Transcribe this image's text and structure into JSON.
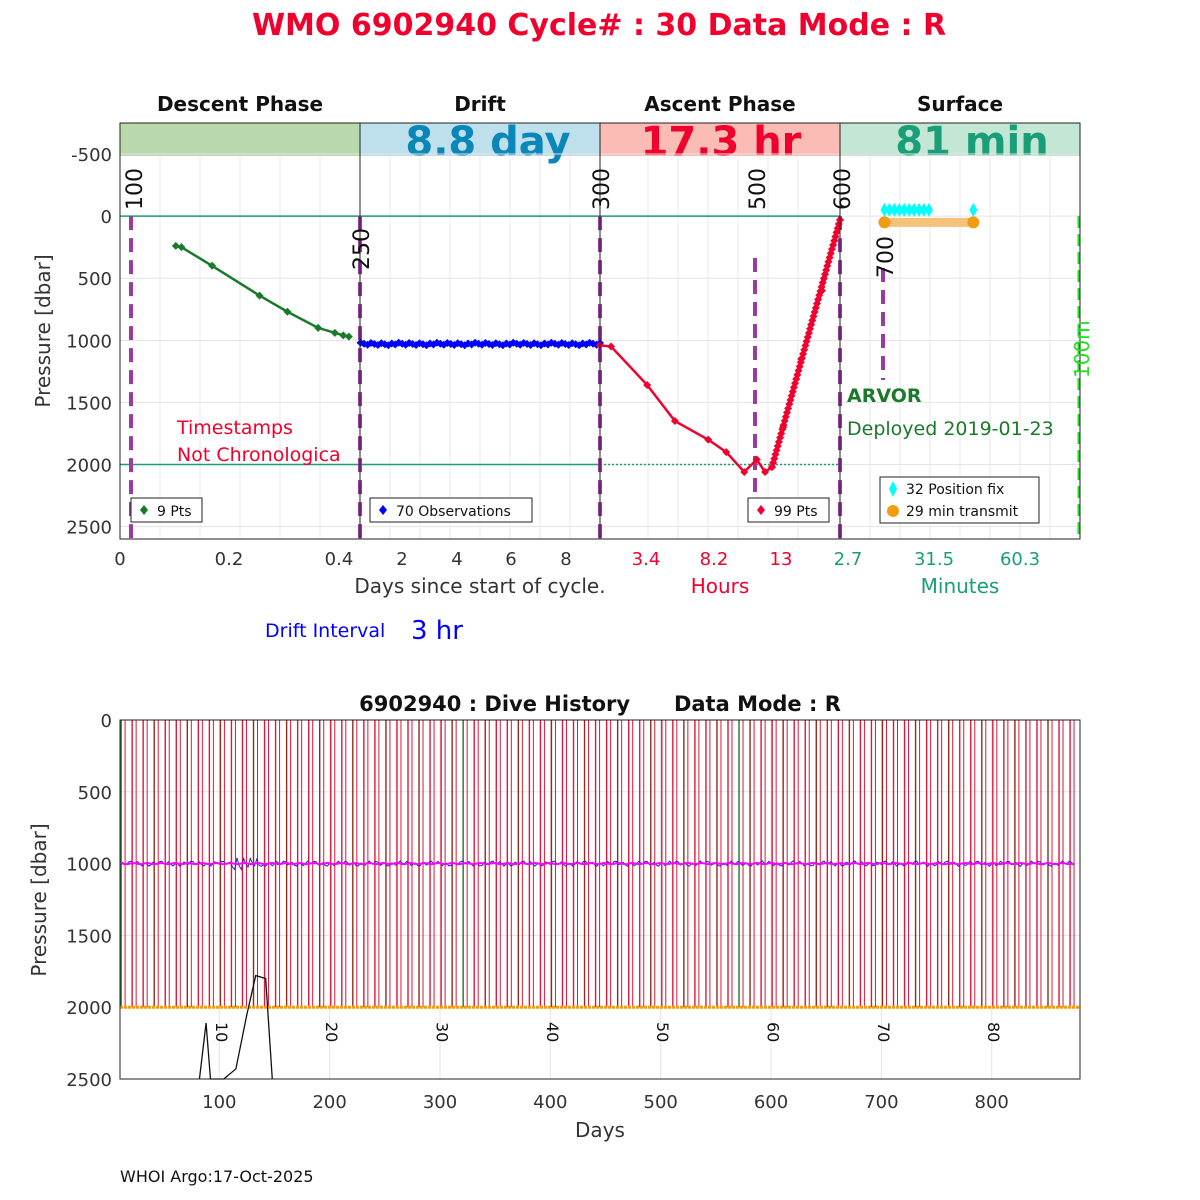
{
  "title": "WMO 6902940   Cycle# : 30   Data Mode : R",
  "colors": {
    "title": "#f0002c",
    "descent": "#1a7a2a",
    "drift": "#0000ff",
    "ascent": "#f0002c",
    "surface_fix": "#00ffff",
    "surface_tx": "#f39c12",
    "marker": "#9b3aa3",
    "teal": "#1a9e78",
    "green_dash": "#22dd22",
    "band_descent": "#b9d9ad",
    "band_drift": "#bde0ec",
    "band_ascent": "#fbbcb5",
    "band_surface": "#c4e6d4",
    "history_red": "#d81b3c",
    "history_green": "#1a7a2a",
    "history_brown": "#8b2e1a",
    "history_magenta": "#ff00ff",
    "history_orange": "#f39c12"
  },
  "top_panel": {
    "phases": [
      {
        "name": "Descent Phase",
        "duration": ""
      },
      {
        "name": "Drift",
        "duration": "8.8 day"
      },
      {
        "name": "Ascent Phase",
        "duration": "17.3 hr"
      },
      {
        "name": "Surface",
        "duration": "81 min"
      }
    ],
    "ylabel": "Pressure [dbar]",
    "yticks": [
      "-500",
      "0",
      "500",
      "1000",
      "1500",
      "2000",
      "2500"
    ],
    "descent_xticks": [
      "0",
      "0.2",
      "0.4"
    ],
    "drift_xticks": [
      "2",
      "4",
      "6",
      "8"
    ],
    "ascent_xticks": [
      "3.4",
      "8.2",
      "13"
    ],
    "surface_xticks": [
      "2.7",
      "31.5",
      "60.3"
    ],
    "xlabel_days": "Days since start of cycle.",
    "xlabel_hours": "Hours",
    "xlabel_minutes": "Minutes",
    "markers": [
      "100",
      "250",
      "300",
      "500",
      "600",
      "700",
      "100m"
    ],
    "legends": {
      "descent": "9 Pts",
      "drift": "70 Observations",
      "ascent": "99 Pts",
      "surface_fix": "32 Position fix",
      "surface_tx": "29 min transmit"
    },
    "warning_line1": "Timestamps",
    "warning_line2": "Not Chronologica",
    "float_type": "ARVOR",
    "deployed": "Deployed 2019-01-23",
    "drift_interval_label": "Drift Interval",
    "drift_interval_value": "3 hr"
  },
  "chart_data": [
    {
      "type": "line",
      "title": "Descent Phase",
      "xlabel": "Days since start of cycle.",
      "ylabel": "Pressure [dbar]",
      "xlim": [
        0,
        0.43
      ],
      "ylim": [
        2600,
        -750
      ],
      "series": [
        {
          "name": "9 Pts",
          "x": [
            0.1,
            0.11,
            0.165,
            0.25,
            0.3,
            0.355,
            0.385,
            0.4,
            0.41
          ],
          "y": [
            240,
            250,
            400,
            640,
            770,
            900,
            940,
            960,
            970
          ]
        }
      ]
    },
    {
      "type": "scatter",
      "title": "Drift",
      "xlim": [
        0.43,
        9.2
      ],
      "ylim": [
        2600,
        -750
      ],
      "series": [
        {
          "name": "70 Observations",
          "x_range": [
            0.45,
            9.2
          ],
          "y_mean": 1030
        }
      ]
    },
    {
      "type": "line",
      "title": "Ascent Phase",
      "xlabel": "Hours",
      "xlim": [
        0,
        17.3
      ],
      "ylim": [
        2600,
        -750
      ],
      "series": [
        {
          "name": "99 Pts",
          "x": [
            0,
            0.8,
            3.4,
            5.4,
            7.8,
            9.1,
            10.4,
            11.3,
            11.9,
            12.4,
            13.2,
            14.5,
            16,
            17.3
          ],
          "y": [
            1040,
            1050,
            1360,
            1650,
            1800,
            1900,
            2060,
            1960,
            2060,
            2020,
            1700,
            1150,
            600,
            30
          ]
        }
      ]
    },
    {
      "type": "scatter",
      "title": "Surface",
      "xlabel": "Minutes",
      "xlim": [
        0,
        81
      ],
      "ylim": [
        2600,
        -750
      ],
      "series": [
        {
          "name": "32 Position fix",
          "x_range": [
            15,
            30
          ],
          "y": -50
        },
        {
          "name": "29 min transmit",
          "x_range": [
            15,
            45
          ],
          "y": 50
        }
      ]
    },
    {
      "type": "line",
      "title": "6902940 : Dive History      Data Mode : R",
      "xlabel": "Days",
      "ylabel": "Pressure [dbar]",
      "xlim": [
        10,
        880
      ],
      "ylim": [
        2500,
        0
      ],
      "xticks": [
        "100",
        "200",
        "300",
        "400",
        "500",
        "600",
        "700",
        "800"
      ],
      "yticks": [
        "0",
        "500",
        "1000",
        "1500",
        "2000",
        "2500"
      ],
      "cycle_labels": [
        "10",
        "20",
        "30",
        "40",
        "50",
        "60",
        "70",
        "80"
      ],
      "series": [
        {
          "name": "Drift pressure",
          "y_mean": 1000
        },
        {
          "name": "Profile pressure",
          "y": 2000
        }
      ]
    }
  ],
  "bottom_panel": {
    "title": "6902940 : Dive History      Data Mode : R",
    "xlabel": "Days",
    "ylabel": "Pressure [dbar]"
  },
  "footer": "WHOI Argo:17-Oct-2025"
}
